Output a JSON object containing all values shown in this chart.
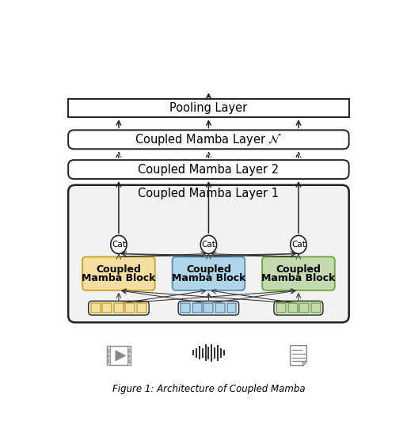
{
  "fig_width": 5.14,
  "fig_height": 5.66,
  "dpi": 100,
  "bg_color": "#ffffff",
  "colors": {
    "yellow": "#F5DFA0",
    "blue": "#AED6E8",
    "green": "#C5D9AE",
    "yellow_border": "#C8A830",
    "blue_border": "#6090B8",
    "green_border": "#70A840",
    "box_border": "#222222",
    "arrow": "#222222",
    "layer1_bg": "#f0f0f0"
  },
  "xlim": [
    0,
    10
  ],
  "ylim": [
    0,
    11.3
  ],
  "caption": "Figure 1: Architecture of Coupled Mamba",
  "yellow_n": 5,
  "blue_n": 5,
  "green_n": 4
}
